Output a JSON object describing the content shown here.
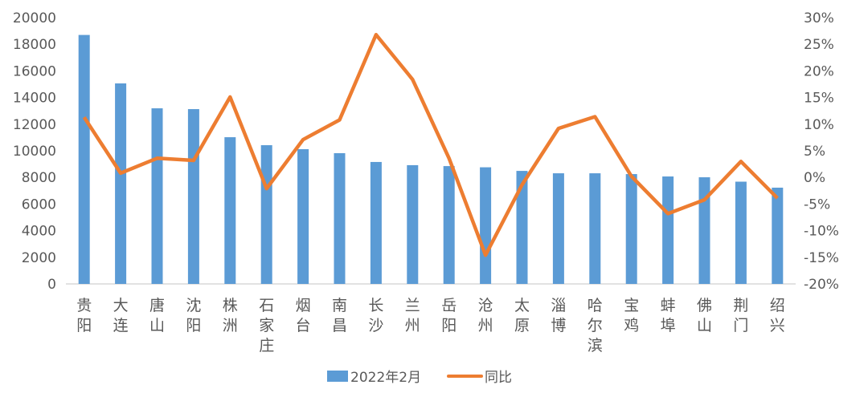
{
  "chart_data": {
    "type": "bar+line",
    "categories": [
      "贵阳",
      "大连",
      "唐山",
      "沈阳",
      "株洲",
      "石家庄",
      "烟台",
      "南昌",
      "长沙",
      "兰州",
      "岳阳",
      "沧州",
      "太原",
      "淄博",
      "哈尔滨",
      "宝鸡",
      "蚌埠",
      "佛山",
      "荆门",
      "绍兴"
    ],
    "series": [
      {
        "name": "2022年2月",
        "type": "bar",
        "axis": "left",
        "color": "#5B9BD5",
        "values": [
          18700,
          15060,
          13190,
          13130,
          11020,
          10420,
          10120,
          9820,
          9160,
          8920,
          8850,
          8760,
          8490,
          8310,
          8310,
          8250,
          8070,
          8010,
          7680,
          7230
        ]
      },
      {
        "name": "同比",
        "type": "line",
        "axis": "right",
        "color": "#ED7D31",
        "values": [
          11.3,
          0.8,
          3.6,
          3.2,
          15.1,
          -2.1,
          7.1,
          10.8,
          26.8,
          18.4,
          3.6,
          -14.6,
          -1.4,
          9.2,
          11.4,
          0.2,
          -6.8,
          -4.2,
          3.0,
          -3.9
        ]
      }
    ],
    "left_axis": {
      "ylim": [
        0,
        20000
      ],
      "ticks": [
        "0",
        "2000",
        "4000",
        "6000",
        "8000",
        "10000",
        "12000",
        "14000",
        "16000",
        "18000",
        "20000"
      ]
    },
    "right_axis": {
      "ylim": [
        -20,
        30
      ],
      "unit": "%",
      "ticks": [
        "-20%",
        "-15%",
        "-10%",
        "-5%",
        "0%",
        "5%",
        "10%",
        "15%",
        "20%",
        "25%",
        "30%"
      ]
    },
    "grid": false,
    "legend": "bottom",
    "title": "",
    "xlabel": "",
    "ylabel": ""
  }
}
